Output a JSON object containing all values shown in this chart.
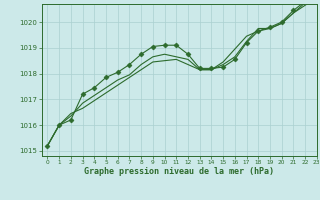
{
  "title": "Graphe pression niveau de la mer (hPa)",
  "bg_color": "#cce9e9",
  "grid_color": "#aad0d0",
  "line_color": "#2d6b2d",
  "marker_color": "#2d6b2d",
  "xlim": [
    -0.5,
    23
  ],
  "ylim": [
    1015.0,
    1020.5
  ],
  "yticks": [
    1015,
    1016,
    1017,
    1018,
    1019,
    1020
  ],
  "xticks": [
    0,
    1,
    2,
    3,
    4,
    5,
    6,
    7,
    8,
    9,
    10,
    11,
    12,
    13,
    14,
    15,
    16,
    17,
    18,
    19,
    20,
    21,
    22,
    23
  ],
  "series": [
    [
      1015.2,
      1016.0,
      1016.2,
      1017.2,
      1017.45,
      1017.85,
      1018.05,
      1018.35,
      1018.75,
      1019.05,
      1019.1,
      1019.1,
      1018.75,
      1018.2,
      1018.2,
      1018.25,
      1018.55,
      1019.2,
      1019.65,
      1019.8,
      1020.0,
      1020.45,
      1020.8,
      1021.0
    ],
    [
      1015.2,
      1016.0,
      1016.45,
      1016.65,
      1016.95,
      1017.25,
      1017.55,
      1017.85,
      1018.15,
      1018.45,
      1018.5,
      1018.55,
      1018.35,
      1018.15,
      1018.15,
      1018.45,
      1018.95,
      1019.45,
      1019.65,
      1019.75,
      1019.95,
      1020.35,
      1020.65,
      1020.95
    ],
    [
      1015.2,
      1016.0,
      1016.35,
      1016.85,
      1017.15,
      1017.45,
      1017.75,
      1017.95,
      1018.35,
      1018.65,
      1018.75,
      1018.65,
      1018.55,
      1018.15,
      1018.15,
      1018.35,
      1018.65,
      1019.25,
      1019.75,
      1019.75,
      1019.95,
      1020.35,
      1020.75,
      1021.05
    ]
  ],
  "marked_series_idx": 0,
  "marker_style": "D",
  "marker_size": 2.5
}
